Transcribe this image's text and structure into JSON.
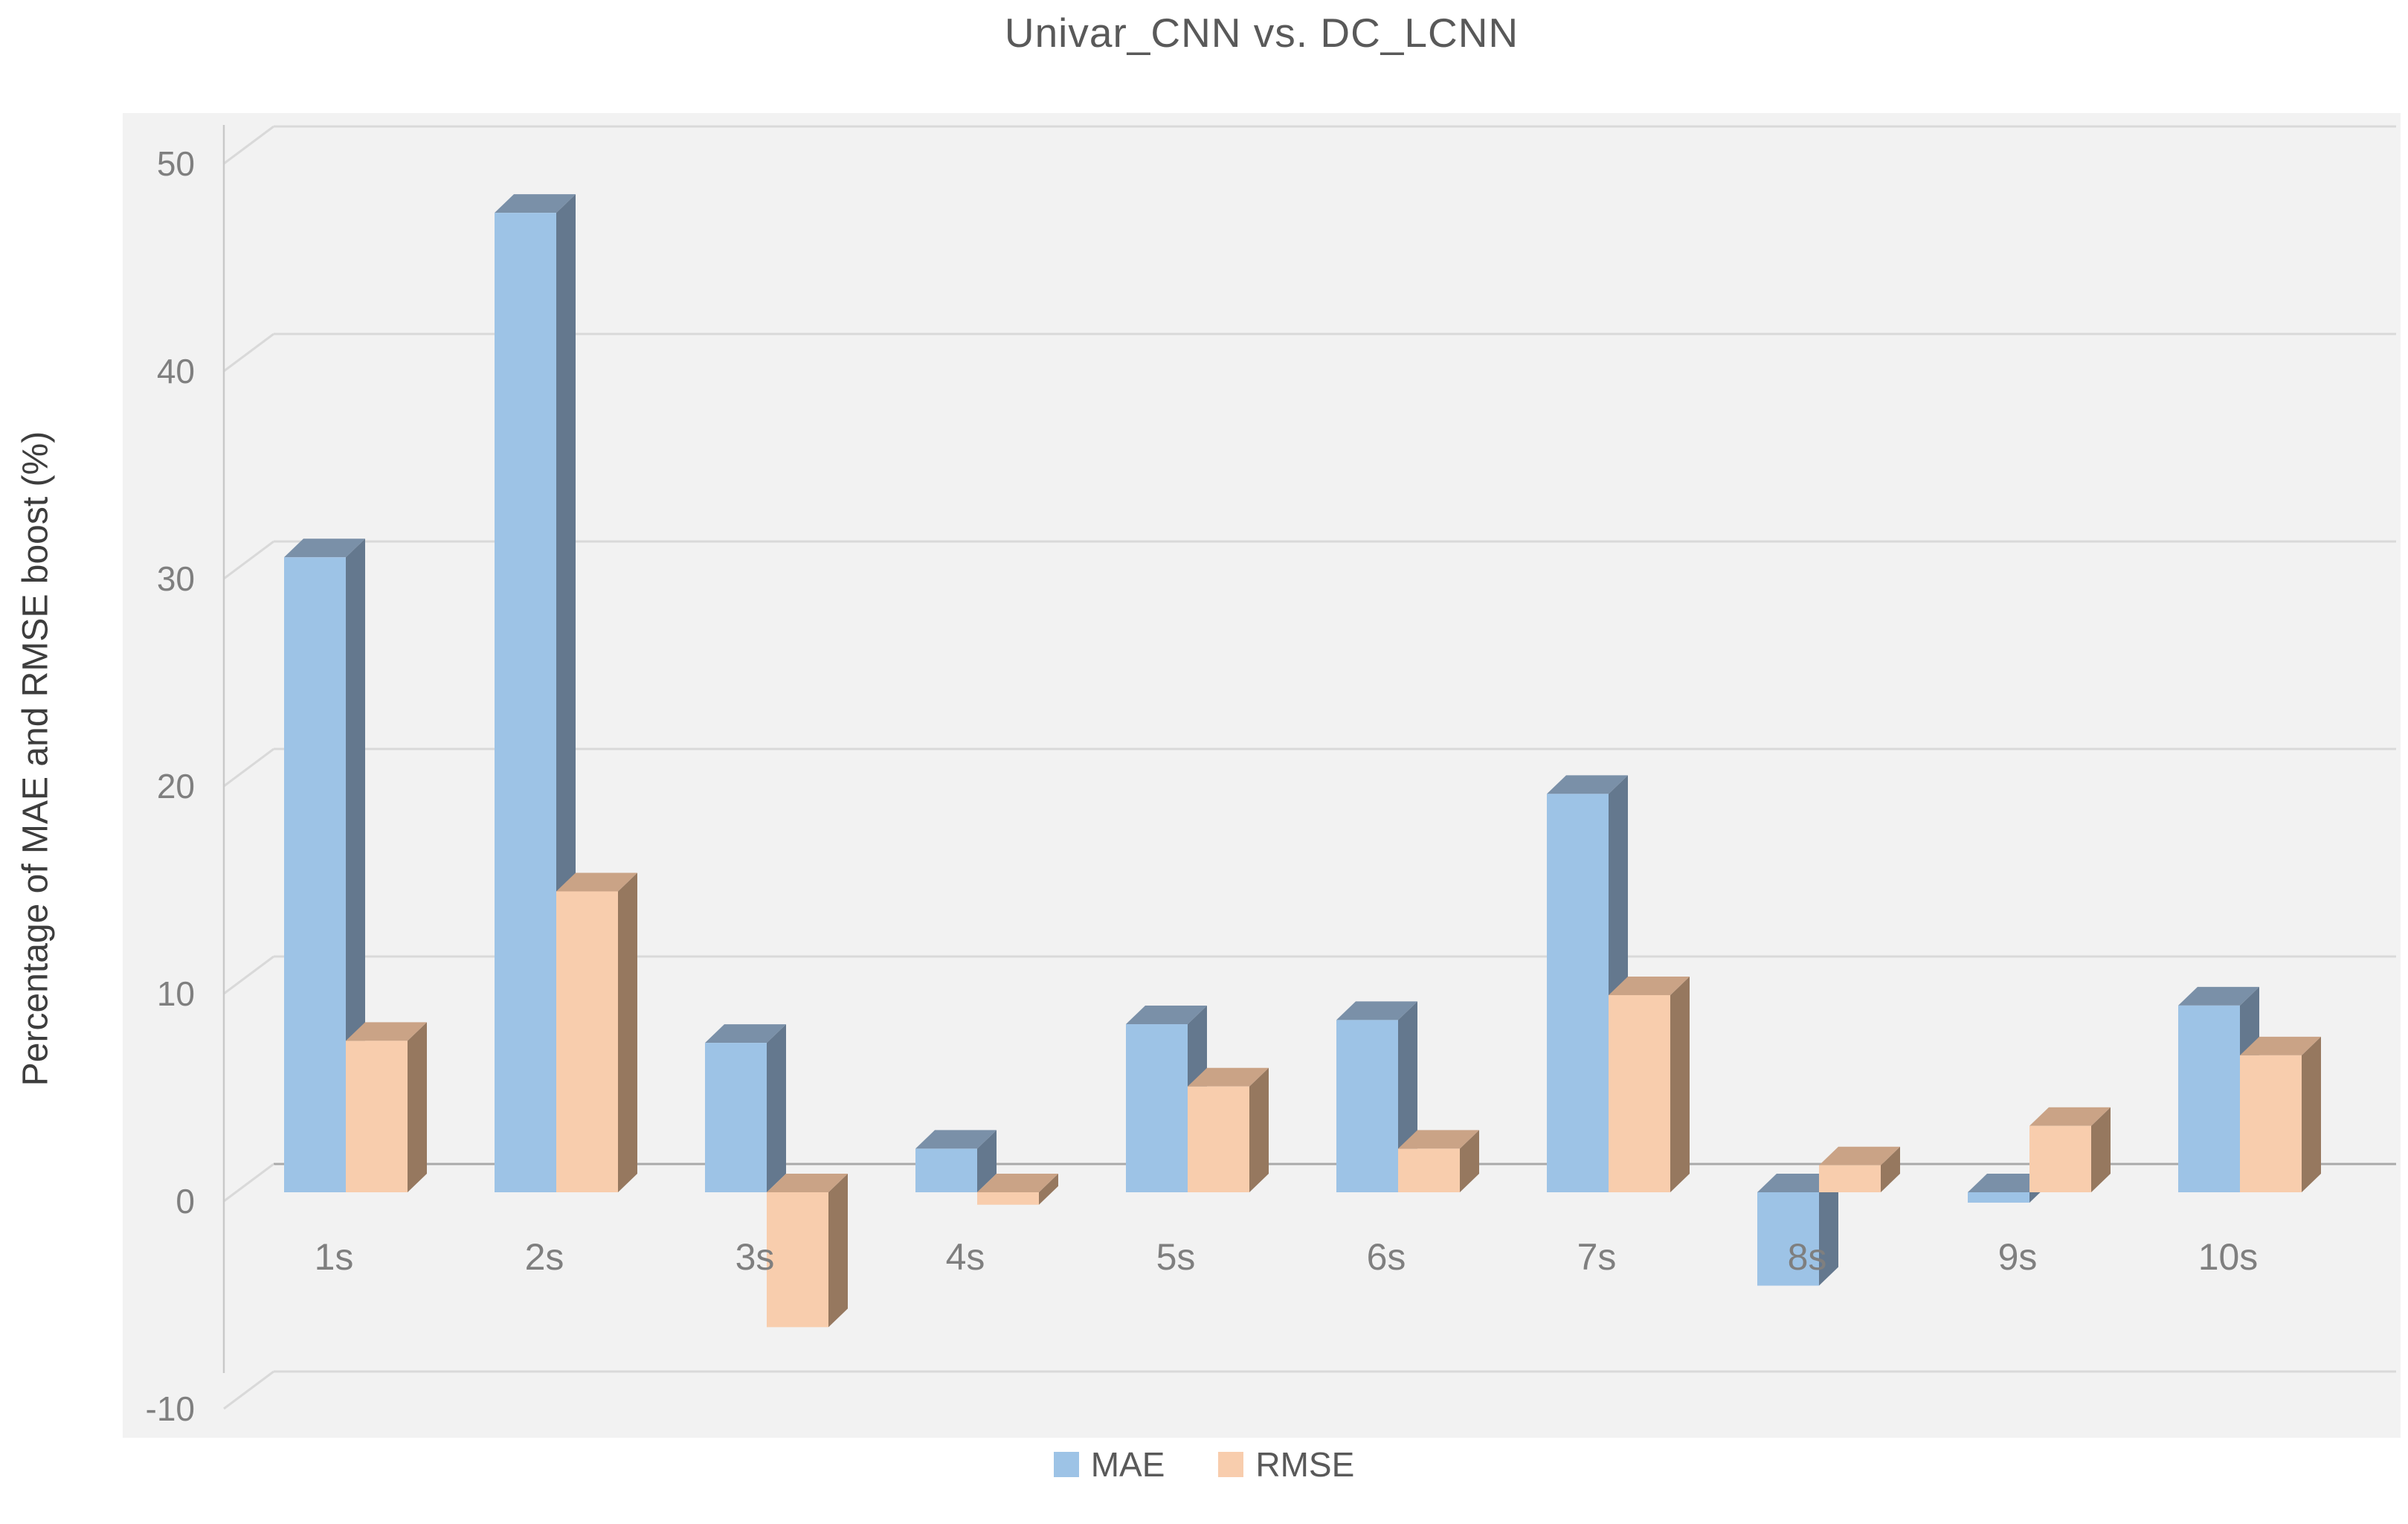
{
  "title": "Univar_CNN vs. DC_LCNN",
  "y_axis": {
    "label": "Percentage of MAE and RMSE boost (%)"
  },
  "legend": [
    {
      "label": "MAE",
      "color": "#9DC3E6"
    },
    {
      "label": "RMSE",
      "color": "#F8CDAD"
    }
  ],
  "colors": {
    "page_bg": "#FFFFFF",
    "plot_bg": "#F2F2F2",
    "gridline": "#D9D9D9",
    "zero_line": "#A9A9A9",
    "axis_line": "#C9C9C9",
    "tick_text": "#7F7F7F",
    "category_text": "#7F7F7F",
    "title_text": "#595959"
  },
  "chart_data": {
    "type": "bar",
    "projection": "3d",
    "title": "Univar_CNN vs. DC_LCNN",
    "ylabel": "Percentage of MAE and RMSE boost (%)",
    "xlabel": "",
    "ylim": [
      -10,
      50
    ],
    "yticks": [
      50,
      40,
      30,
      20,
      10,
      0,
      -10
    ],
    "grid": true,
    "legend_position": "bottom",
    "categories": [
      "1s",
      "2s",
      "3s",
      "4s",
      "5s",
      "6s",
      "7s",
      "8s",
      "9s",
      "10s"
    ],
    "series": [
      {
        "name": "MAE",
        "color": "#9DC3E6",
        "color_top": "#7A90A8",
        "color_side": "#64788E",
        "values": [
          30.6,
          47.2,
          7.2,
          2.1,
          8.1,
          8.3,
          19.2,
          -4.5,
          -0.5,
          9.0
        ]
      },
      {
        "name": "RMSE",
        "color": "#F8CDAD",
        "color_top": "#CAA386",
        "color_side": "#96785F",
        "values": [
          7.3,
          14.5,
          -6.5,
          -0.6,
          5.1,
          2.1,
          9.5,
          1.3,
          3.2,
          6.6
        ]
      }
    ]
  }
}
